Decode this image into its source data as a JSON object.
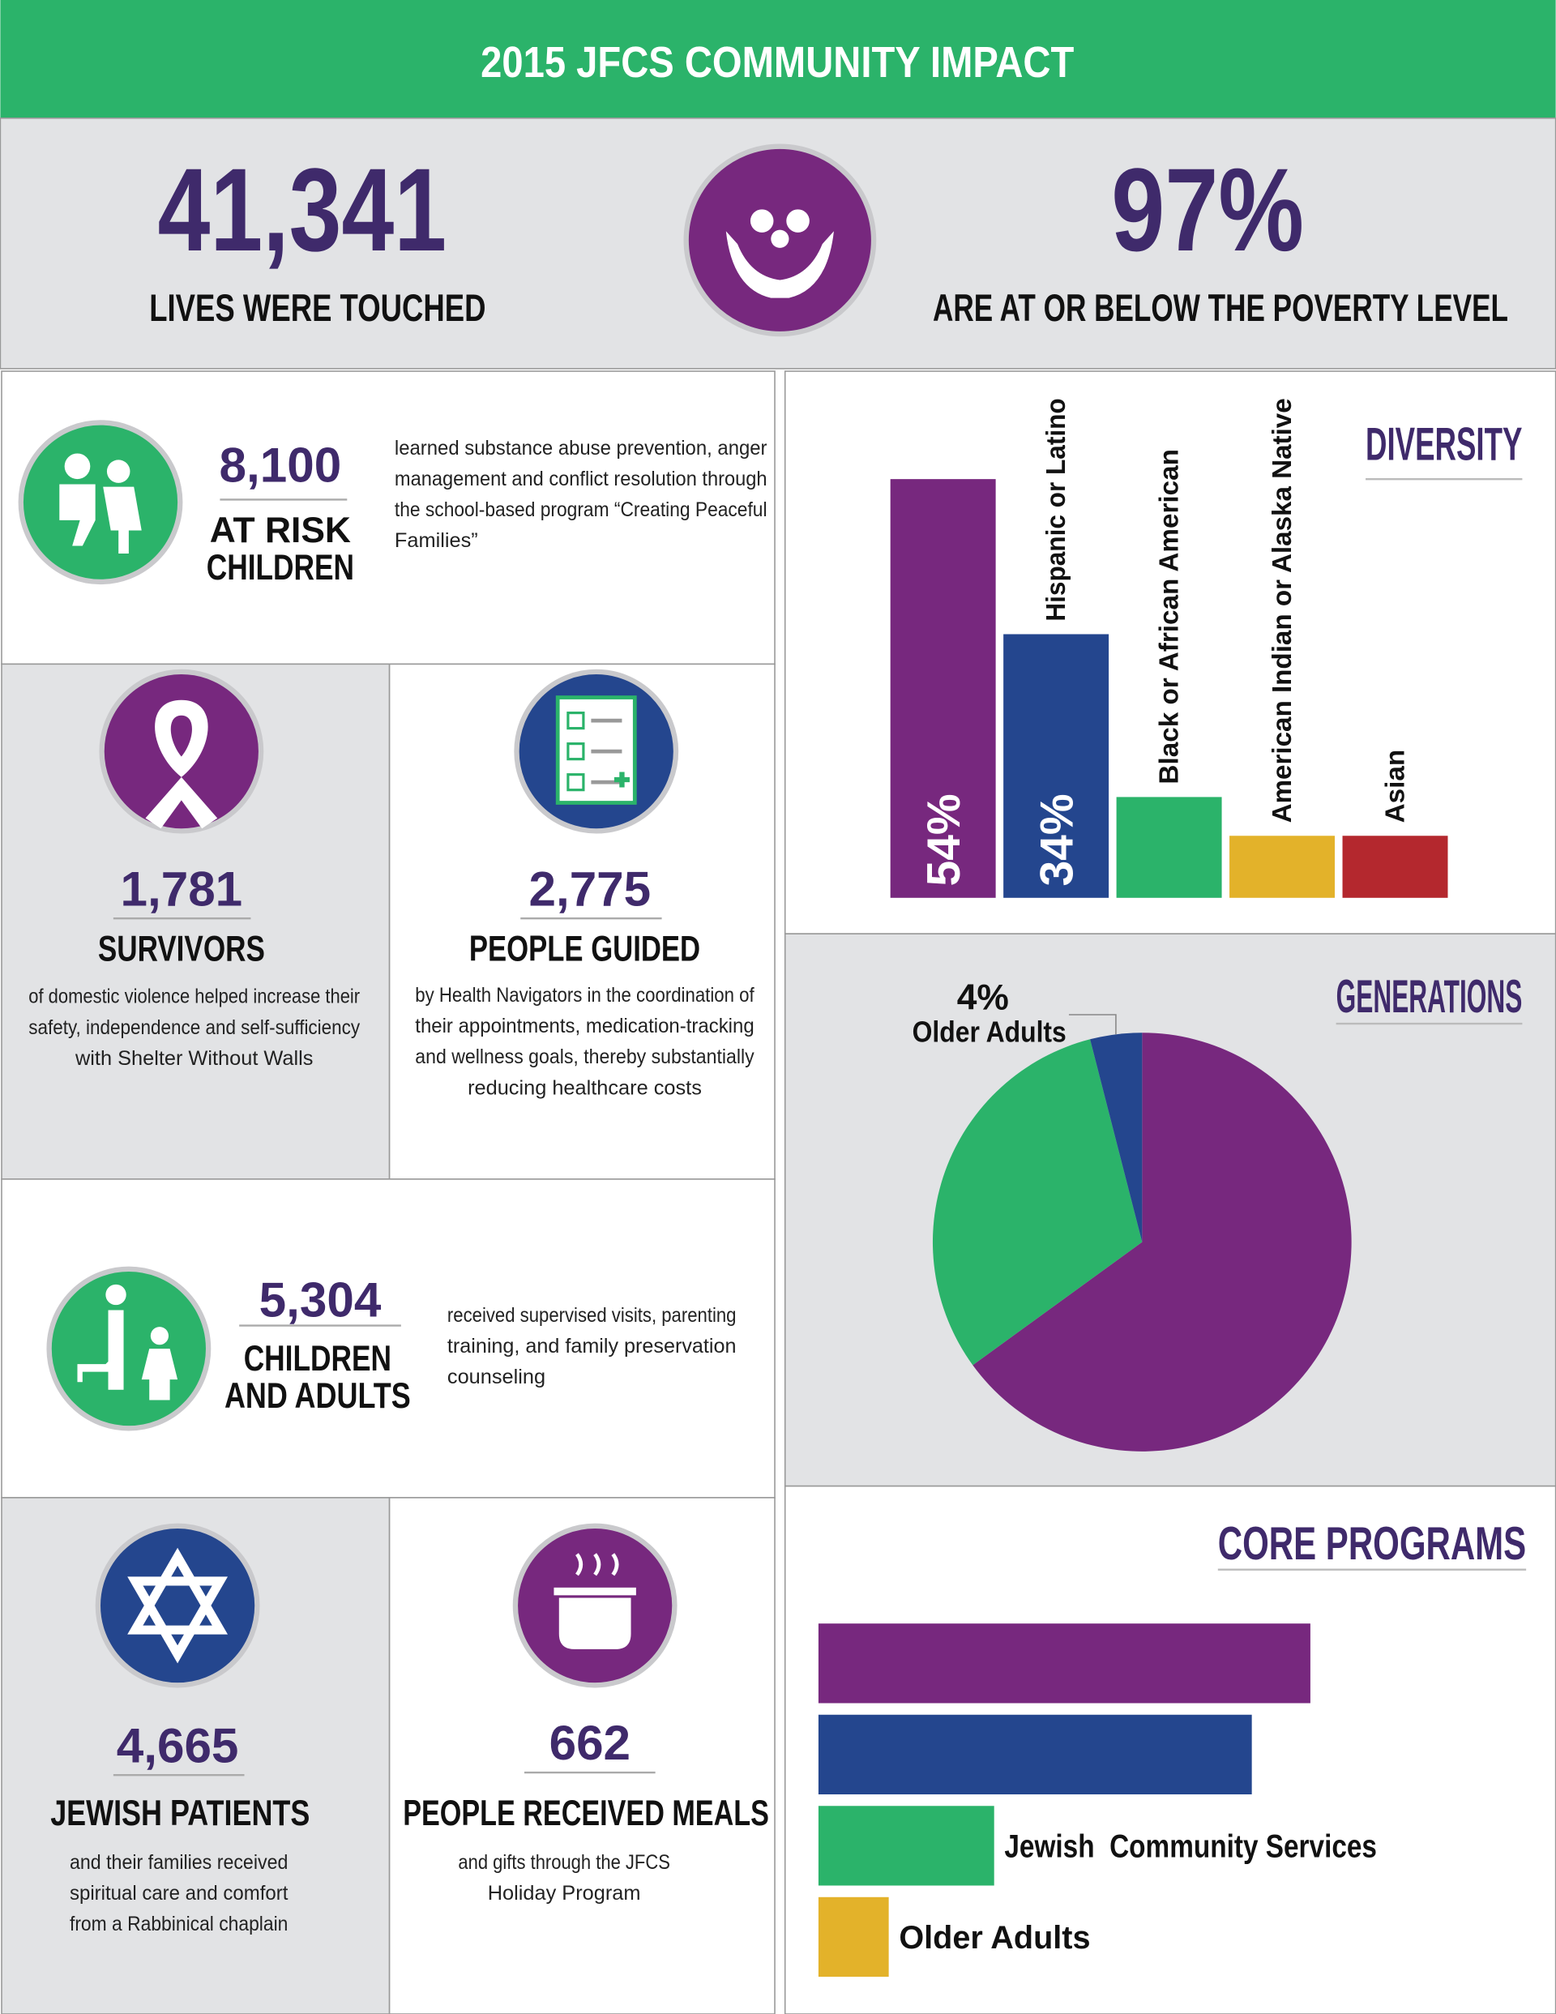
{
  "header": {
    "title": "2015 JFCS COMMUNITY IMPACT"
  },
  "summary": [
    {
      "number": "41,341",
      "label": "LIVES WERE TOUCHED"
    },
    {
      "number": "97%",
      "label": "ARE AT OR BELOW THE POVERTY LEVEL"
    }
  ],
  "stats": [
    {
      "number": "8,100",
      "title": [
        "AT RISK",
        "CHILDREN"
      ],
      "description": [
        "learned substance abuse prevention, anger",
        "management and conflict resolution through",
        "the school-based program “Creating Peaceful",
        "Families”"
      ]
    },
    {
      "number": "1,781",
      "title": [
        "SURVIVORS"
      ],
      "description": [
        "of domestic violence helped increase their",
        "safety, independence and self-sufficiency",
        "with Shelter Without Walls"
      ]
    },
    {
      "number": "2,775",
      "title": [
        "PEOPLE GUIDED"
      ],
      "description": [
        "by Health Navigators in the coordination of",
        "their appointments, medication-tracking",
        "and wellness goals, thereby substantially",
        "reducing healthcare costs"
      ]
    },
    {
      "number": "5,304",
      "title": [
        "CHILDREN",
        "AND ADULTS"
      ],
      "description": [
        "received supervised visits, parenting",
        "training, and family preservation",
        "counseling"
      ]
    },
    {
      "number": "4,665",
      "title": [
        "JEWISH PATIENTS"
      ],
      "description": [
        "and their families received",
        "spiritual care and comfort",
        "from a Rabbinical chaplain"
      ]
    },
    {
      "number": "662",
      "title": [
        "PEOPLE RECEIVED MEALS"
      ],
      "description": [
        "and gifts through the JFCS",
        "Holiday Program"
      ]
    }
  ],
  "chart_data": [
    {
      "type": "bar",
      "title": "DIVERSITY",
      "categories": [
        null,
        "Hispanic or Latino",
        "Black or African American",
        "American Indian or Alaska Native",
        "Asian"
      ],
      "values": [
        54,
        34,
        13,
        8,
        8
      ],
      "value_labels": [
        "54%",
        "34%",
        null,
        null,
        null
      ],
      "colors": [
        "#77287e",
        "#24468e",
        "#2bb36a",
        "#e3b22a",
        "#b4282e"
      ]
    },
    {
      "type": "pie",
      "title": "GENERATIONS",
      "categories": [
        null,
        null,
        "Older Adults"
      ],
      "values": [
        65,
        31,
        4
      ],
      "value_labels": [
        null,
        null,
        "4%"
      ],
      "colors": [
        "#77287e",
        "#2bb36a",
        "#24468e"
      ]
    },
    {
      "type": "hbar",
      "title": "CORE PROGRAMS",
      "categories": [
        null,
        null,
        "Jewish  Community Services",
        "Older Adults"
      ],
      "values": [
        42,
        37,
        15,
        6
      ],
      "colors": [
        "#77287e",
        "#24468e",
        "#2bb36a",
        "#e3b22a"
      ]
    }
  ]
}
